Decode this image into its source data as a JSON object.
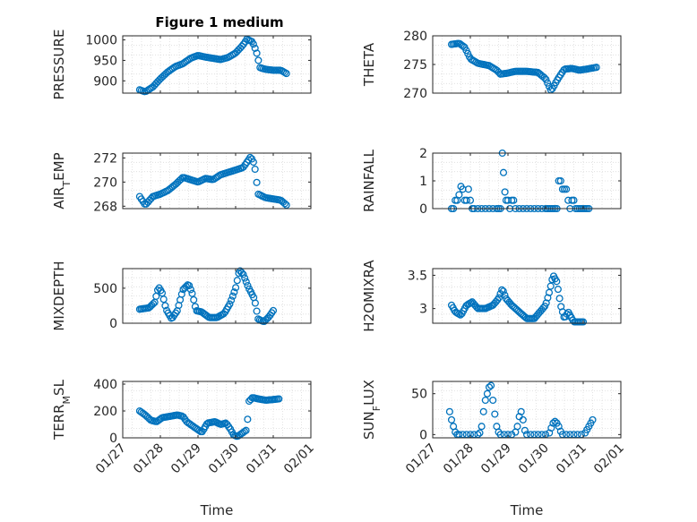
{
  "figure": {
    "title": "Figure 1 medium",
    "marker_color": "#0072BD",
    "axis_color": "#262626",
    "grid_color": "#dcdcdc"
  },
  "chart_data": [
    {
      "type": "scatter",
      "id": "pressure",
      "ylabel": "PRESSURE",
      "ylabel_sub": "",
      "ylim": [
        870,
        1010
      ],
      "yticks": [
        900,
        950,
        1000
      ],
      "xlim": [
        0,
        5
      ],
      "xticks": [
        0,
        1,
        2,
        3,
        4,
        5
      ],
      "xticklabels": [
        "01/27",
        "01/28",
        "01/29",
        "01/30",
        "01/31",
        "02/01"
      ],
      "show_xticklabels": false,
      "xlabel": "",
      "anchors": [
        [
          0.45,
          878
        ],
        [
          0.6,
          873
        ],
        [
          0.8,
          885
        ],
        [
          1.0,
          905
        ],
        [
          1.2,
          922
        ],
        [
          1.4,
          935
        ],
        [
          1.6,
          942
        ],
        [
          1.8,
          955
        ],
        [
          2.0,
          962
        ],
        [
          2.2,
          958
        ],
        [
          2.4,
          955
        ],
        [
          2.6,
          952
        ],
        [
          2.8,
          957
        ],
        [
          3.0,
          968
        ],
        [
          3.2,
          988
        ],
        [
          3.3,
          1002
        ],
        [
          3.45,
          995
        ],
        [
          3.55,
          972
        ],
        [
          3.65,
          932
        ],
        [
          3.8,
          928
        ],
        [
          4.0,
          926
        ],
        [
          4.2,
          926
        ],
        [
          4.35,
          918
        ]
      ]
    },
    {
      "type": "scatter",
      "id": "theta",
      "ylabel": "THETA",
      "ylabel_sub": "",
      "ylim": [
        270,
        280
      ],
      "yticks": [
        270,
        275,
        280
      ],
      "xlim": [
        0,
        5
      ],
      "xticks": [
        0,
        1,
        2,
        3,
        4,
        5
      ],
      "xticklabels": [
        "01/27",
        "01/28",
        "01/29",
        "01/30",
        "01/31",
        "02/01"
      ],
      "show_xticklabels": false,
      "xlabel": "",
      "anchors": [
        [
          0.5,
          278.5
        ],
        [
          0.7,
          278.7
        ],
        [
          0.85,
          278
        ],
        [
          1.0,
          276
        ],
        [
          1.2,
          275.2
        ],
        [
          1.5,
          274.8
        ],
        [
          1.7,
          274
        ],
        [
          1.8,
          273.3
        ],
        [
          2.0,
          273.5
        ],
        [
          2.2,
          273.8
        ],
        [
          2.5,
          273.8
        ],
        [
          2.8,
          273.6
        ],
        [
          3.0,
          272.5
        ],
        [
          3.15,
          270.4
        ],
        [
          3.3,
          272.2
        ],
        [
          3.5,
          274.2
        ],
        [
          3.7,
          274.3
        ],
        [
          3.9,
          274
        ],
        [
          4.1,
          274.2
        ],
        [
          4.35,
          274.5
        ]
      ]
    },
    {
      "type": "scatter",
      "id": "air-temp",
      "ylabel": "AIR",
      "ylabel_sub": "T",
      "ylabel_suffix": "EMP",
      "ylim": [
        267.8,
        272.4
      ],
      "yticks": [
        268,
        270,
        272
      ],
      "xlim": [
        0,
        5
      ],
      "xticks": [
        0,
        1,
        2,
        3,
        4,
        5
      ],
      "xticklabels": [
        "01/27",
        "01/28",
        "01/29",
        "01/30",
        "01/31",
        "02/01"
      ],
      "show_xticklabels": false,
      "xlabel": "",
      "anchors": [
        [
          0.45,
          268.8
        ],
        [
          0.6,
          268.1
        ],
        [
          0.8,
          268.8
        ],
        [
          1.0,
          269
        ],
        [
          1.2,
          269.3
        ],
        [
          1.4,
          269.8
        ],
        [
          1.6,
          270.4
        ],
        [
          1.8,
          270.2
        ],
        [
          2.0,
          270
        ],
        [
          2.2,
          270.3
        ],
        [
          2.4,
          270.2
        ],
        [
          2.6,
          270.6
        ],
        [
          2.8,
          270.8
        ],
        [
          3.0,
          271
        ],
        [
          3.2,
          271.2
        ],
        [
          3.4,
          272.1
        ],
        [
          3.5,
          271.5
        ],
        [
          3.6,
          269
        ],
        [
          3.8,
          268.7
        ],
        [
          4.0,
          268.6
        ],
        [
          4.2,
          268.5
        ],
        [
          4.35,
          268.1
        ]
      ]
    },
    {
      "type": "scatter",
      "id": "rainfall",
      "ylabel": "RAINFALL",
      "ylabel_sub": "",
      "ylim": [
        0,
        2
      ],
      "yticks": [
        0,
        1,
        2
      ],
      "xlim": [
        0,
        5
      ],
      "xticks": [
        0,
        1,
        2,
        3,
        4,
        5
      ],
      "xticklabels": [
        "01/27",
        "01/28",
        "01/29",
        "01/30",
        "01/31",
        "02/01"
      ],
      "show_xticklabels": false,
      "xlabel": "",
      "points": [
        [
          0.5,
          0
        ],
        [
          0.55,
          0
        ],
        [
          0.6,
          0.3
        ],
        [
          0.65,
          0.3
        ],
        [
          0.7,
          0.5
        ],
        [
          0.75,
          0.8
        ],
        [
          0.8,
          0.7
        ],
        [
          0.85,
          0.3
        ],
        [
          0.9,
          0.3
        ],
        [
          0.95,
          0.7
        ],
        [
          1.0,
          0.3
        ],
        [
          1.05,
          0
        ],
        [
          1.1,
          0
        ],
        [
          1.2,
          0
        ],
        [
          1.3,
          0
        ],
        [
          1.4,
          0
        ],
        [
          1.5,
          0
        ],
        [
          1.6,
          0
        ],
        [
          1.7,
          0
        ],
        [
          1.75,
          0
        ],
        [
          1.8,
          0
        ],
        [
          1.85,
          2.0
        ],
        [
          1.88,
          1.3
        ],
        [
          1.92,
          0.6
        ],
        [
          1.95,
          0.3
        ],
        [
          2.0,
          0.3
        ],
        [
          2.05,
          0
        ],
        [
          2.1,
          0.3
        ],
        [
          2.15,
          0.3
        ],
        [
          2.2,
          0
        ],
        [
          2.3,
          0
        ],
        [
          2.4,
          0
        ],
        [
          2.5,
          0
        ],
        [
          2.6,
          0
        ],
        [
          2.7,
          0
        ],
        [
          2.8,
          0
        ],
        [
          2.9,
          0
        ],
        [
          3.0,
          0
        ],
        [
          3.05,
          0
        ],
        [
          3.1,
          0
        ],
        [
          3.15,
          0
        ],
        [
          3.2,
          0
        ],
        [
          3.25,
          0
        ],
        [
          3.3,
          0
        ],
        [
          3.35,
          1.0
        ],
        [
          3.4,
          1.0
        ],
        [
          3.45,
          0.7
        ],
        [
          3.5,
          0.7
        ],
        [
          3.55,
          0.7
        ],
        [
          3.6,
          0.3
        ],
        [
          3.65,
          0
        ],
        [
          3.7,
          0.3
        ],
        [
          3.75,
          0.3
        ],
        [
          3.8,
          0
        ],
        [
          3.85,
          0
        ],
        [
          3.9,
          0
        ],
        [
          3.95,
          0
        ],
        [
          4.0,
          0
        ],
        [
          4.05,
          0
        ],
        [
          4.1,
          0
        ],
        [
          4.15,
          0
        ]
      ]
    },
    {
      "type": "scatter",
      "id": "mixdepth",
      "ylabel": "MIXDEPTH",
      "ylabel_sub": "",
      "ylim": [
        0,
        780
      ],
      "yticks": [
        0,
        500
      ],
      "xlim": [
        0,
        5
      ],
      "xticks": [
        0,
        1,
        2,
        3,
        4,
        5
      ],
      "xticklabels": [
        "01/27",
        "01/28",
        "01/29",
        "01/30",
        "01/31",
        "02/01"
      ],
      "show_xticklabels": false,
      "xlabel": "",
      "anchors": [
        [
          0.45,
          200
        ],
        [
          0.7,
          220
        ],
        [
          0.85,
          300
        ],
        [
          0.95,
          520
        ],
        [
          1.05,
          430
        ],
        [
          1.15,
          200
        ],
        [
          1.3,
          60
        ],
        [
          1.45,
          180
        ],
        [
          1.6,
          480
        ],
        [
          1.75,
          560
        ],
        [
          1.85,
          420
        ],
        [
          1.95,
          180
        ],
        [
          2.1,
          160
        ],
        [
          2.3,
          80
        ],
        [
          2.5,
          80
        ],
        [
          2.7,
          140
        ],
        [
          2.85,
          280
        ],
        [
          3.0,
          500
        ],
        [
          3.1,
          760
        ],
        [
          3.2,
          700
        ],
        [
          3.35,
          500
        ],
        [
          3.5,
          350
        ],
        [
          3.6,
          60
        ],
        [
          3.75,
          20
        ],
        [
          3.9,
          100
        ],
        [
          4.0,
          180
        ]
      ]
    },
    {
      "type": "scatter",
      "id": "h2omixra",
      "ylabel": "H2OMIXRA",
      "ylabel_sub": "",
      "ylim": [
        2.78,
        3.6
      ],
      "yticks": [
        3,
        3.5
      ],
      "xlim": [
        0,
        5
      ],
      "xticks": [
        0,
        1,
        2,
        3,
        4,
        5
      ],
      "xticklabels": [
        "01/27",
        "01/28",
        "01/29",
        "01/30",
        "01/31",
        "02/01"
      ],
      "show_xticklabels": false,
      "xlabel": "",
      "anchors": [
        [
          0.5,
          3.05
        ],
        [
          0.6,
          2.95
        ],
        [
          0.75,
          2.9
        ],
        [
          0.9,
          3.05
        ],
        [
          1.05,
          3.1
        ],
        [
          1.2,
          3.0
        ],
        [
          1.4,
          3.0
        ],
        [
          1.6,
          3.05
        ],
        [
          1.75,
          3.15
        ],
        [
          1.85,
          3.3
        ],
        [
          1.95,
          3.15
        ],
        [
          2.1,
          3.05
        ],
        [
          2.3,
          2.95
        ],
        [
          2.5,
          2.85
        ],
        [
          2.7,
          2.85
        ],
        [
          2.85,
          2.95
        ],
        [
          3.0,
          3.05
        ],
        [
          3.1,
          3.25
        ],
        [
          3.2,
          3.5
        ],
        [
          3.3,
          3.4
        ],
        [
          3.4,
          3.05
        ],
        [
          3.5,
          2.85
        ],
        [
          3.6,
          2.95
        ],
        [
          3.75,
          2.8
        ],
        [
          3.9,
          2.8
        ],
        [
          4.0,
          2.8
        ]
      ]
    },
    {
      "type": "scatter",
      "id": "terr-msl",
      "ylabel": "TERR",
      "ylabel_sub": "M",
      "ylabel_suffix": "SL",
      "ylim": [
        0,
        420
      ],
      "yticks": [
        0,
        200,
        400
      ],
      "xlim": [
        0,
        5
      ],
      "xticks": [
        0,
        1,
        2,
        3,
        4,
        5
      ],
      "xticklabels": [
        "01/27",
        "01/28",
        "01/29",
        "01/30",
        "01/31",
        "02/01"
      ],
      "show_xticklabels": true,
      "xlabel": "Time",
      "anchors": [
        [
          0.45,
          200
        ],
        [
          0.6,
          170
        ],
        [
          0.75,
          130
        ],
        [
          0.9,
          120
        ],
        [
          1.05,
          150
        ],
        [
          1.25,
          160
        ],
        [
          1.45,
          170
        ],
        [
          1.6,
          160
        ],
        [
          1.7,
          120
        ],
        [
          1.85,
          90
        ],
        [
          2.0,
          60
        ],
        [
          2.1,
          40
        ],
        [
          2.25,
          110
        ],
        [
          2.45,
          120
        ],
        [
          2.6,
          100
        ],
        [
          2.75,
          110
        ],
        [
          2.85,
          70
        ],
        [
          2.95,
          20
        ],
        [
          3.05,
          10
        ],
        [
          3.2,
          40
        ],
        [
          3.3,
          60
        ],
        [
          3.35,
          270
        ],
        [
          3.45,
          300
        ],
        [
          3.6,
          290
        ],
        [
          3.8,
          280
        ],
        [
          4.0,
          285
        ],
        [
          4.15,
          290
        ]
      ]
    },
    {
      "type": "scatter",
      "id": "sun-flux",
      "ylabel": "SUN",
      "ylabel_sub": "F",
      "ylabel_suffix": "LUX",
      "ylim": [
        -4,
        65
      ],
      "yticks": [
        0,
        50
      ],
      "xlim": [
        0,
        5
      ],
      "xticks": [
        0,
        1,
        2,
        3,
        4,
        5
      ],
      "xticklabels": [
        "01/27",
        "01/28",
        "01/29",
        "01/30",
        "01/31",
        "02/01"
      ],
      "show_xticklabels": true,
      "xlabel": "Time",
      "points": [
        [
          0.45,
          28
        ],
        [
          0.5,
          18
        ],
        [
          0.55,
          10
        ],
        [
          0.6,
          3
        ],
        [
          0.65,
          0
        ],
        [
          0.7,
          0
        ],
        [
          0.8,
          0
        ],
        [
          0.9,
          0
        ],
        [
          1.0,
          0
        ],
        [
          1.1,
          0
        ],
        [
          1.2,
          0
        ],
        [
          1.25,
          2
        ],
        [
          1.3,
          10
        ],
        [
          1.35,
          28
        ],
        [
          1.4,
          42
        ],
        [
          1.45,
          50
        ],
        [
          1.5,
          58
        ],
        [
          1.55,
          60
        ],
        [
          1.6,
          42
        ],
        [
          1.65,
          25
        ],
        [
          1.7,
          10
        ],
        [
          1.75,
          3
        ],
        [
          1.8,
          0
        ],
        [
          1.9,
          0
        ],
        [
          2.0,
          0
        ],
        [
          2.1,
          0
        ],
        [
          2.2,
          3
        ],
        [
          2.25,
          10
        ],
        [
          2.3,
          22
        ],
        [
          2.35,
          28
        ],
        [
          2.4,
          18
        ],
        [
          2.45,
          5
        ],
        [
          2.5,
          0
        ],
        [
          2.6,
          0
        ],
        [
          2.7,
          0
        ],
        [
          2.8,
          0
        ],
        [
          2.9,
          0
        ],
        [
          3.0,
          0
        ],
        [
          3.1,
          2
        ],
        [
          3.15,
          8
        ],
        [
          3.2,
          14
        ],
        [
          3.25,
          16
        ],
        [
          3.3,
          14
        ],
        [
          3.35,
          10
        ],
        [
          3.4,
          4
        ],
        [
          3.45,
          0
        ],
        [
          3.55,
          0
        ],
        [
          3.65,
          0
        ],
        [
          3.75,
          0
        ],
        [
          3.85,
          0
        ],
        [
          3.95,
          0
        ],
        [
          4.05,
          2
        ],
        [
          4.1,
          6
        ],
        [
          4.15,
          10
        ],
        [
          4.2,
          14
        ],
        [
          4.25,
          18
        ]
      ]
    }
  ]
}
